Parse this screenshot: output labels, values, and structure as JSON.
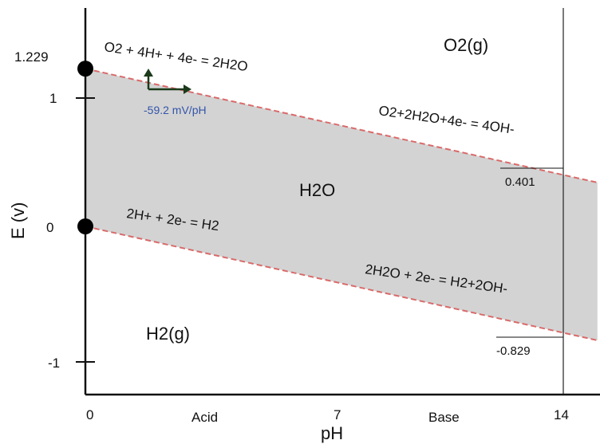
{
  "chart_data": {
    "type": "line",
    "title": "",
    "xlabel": "pH",
    "ylabel": "E (v)",
    "xlim": [
      0,
      15
    ],
    "ylim": [
      -1.2,
      1.5
    ],
    "x_ticks": [
      "0",
      "7",
      "14"
    ],
    "y_ticks": [
      "1.229",
      "1",
      "0",
      "-1"
    ],
    "x_region_labels": [
      "Acid",
      "Base"
    ],
    "series": [
      {
        "x": [
          0,
          14
        ],
        "y": [
          1.229,
          0.401
        ],
        "color": "#d96a6a",
        "style": "dashed"
      },
      {
        "x": [
          0,
          14
        ],
        "y": [
          0.0,
          -0.829
        ],
        "color": "#d96a6a",
        "style": "dashed"
      }
    ],
    "region_labels": {
      "upper": "O2(g)",
      "middle": "H2O",
      "lower": "H2(g)"
    },
    "equations": {
      "o2_acid": "O2 + 4H+ + 4e- = 2H2O",
      "o2_base": "O2+2H2O+4e- = 4OH-",
      "h2_acid": "2H+ + 2e- = H2",
      "h2_base": "2H2O + 2e- = H2+2OH-"
    },
    "slope_label": "-59.2 mV/pH",
    "annotations": {
      "o2_at_14": "0.401",
      "h2_at_14": "-0.829"
    },
    "fill_color": "#d3d3d3",
    "grid": false
  }
}
